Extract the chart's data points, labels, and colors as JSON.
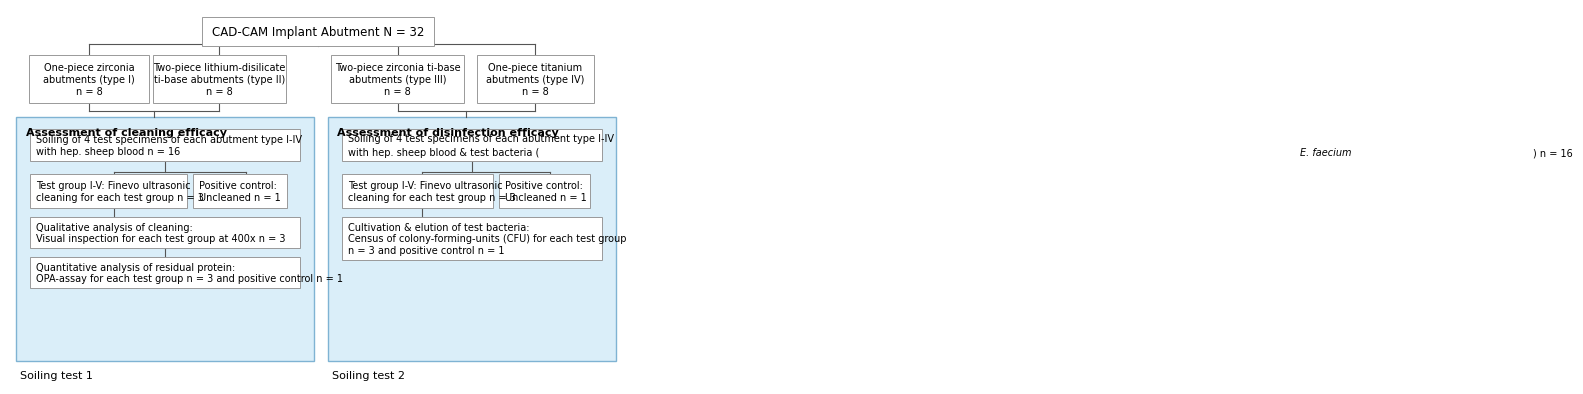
{
  "bg_color": "#ffffff",
  "box_edge_color": "#999999",
  "panel_bg_color": "#daeef9",
  "panel_edge_color": "#7fb3d3",
  "line_color": "#555555",
  "font_size": 7.0,
  "title_font_size": 8.5,
  "panel_label_font_size": 8.0,
  "small_label_font_size": 8.0,
  "title_box": {
    "text": "CAD-CAM Implant Abutment N = 32"
  },
  "type_boxes": [
    "One-piece zirconia\nabutments (type I)\nn = 8",
    "Two-piece lithium-disilicate\nti-base abutments (type II)\nn = 8",
    "Two-piece zirconia ti-base\nabutments (type III)\nn = 8",
    "One-piece titanium\nabutments (type IV)\nn = 8"
  ],
  "left_panel_label": "Assessment of cleaning efficacy",
  "right_panel_label": "Assessment of disinfection efficacy",
  "left_soiling": "Soiling of 4 test specimens of each abutment type I-IV\nwith hep. sheep blood n = 16",
  "left_test": "Test group I-V: Finevo ultrasonic\ncleaning for each test group n = 3",
  "left_ctrl": "Positive control:\nUncleaned n = 1",
  "left_qual": "Qualitative analysis of cleaning:\nVisual inspection for each test group at 400x n = 3",
  "left_quant": "Quantitative analysis of residual protein:\nOPA-assay for each test group n = 3 and positive control n = 1",
  "right_soiling": "Soiling of 4 test specimens of each abutment type I-IV\nwith hep. sheep blood & test bacteria (E. faecium) n = 16",
  "right_test": "Test group I-V: Finevo ultrasonic\ncleaning for each test group n = 3",
  "right_ctrl": "Positive control:\nUncleaned n = 1",
  "right_cult": "Cultivation & elution of test bacteria:\nCensus of colony-forming-units (CFU) for each test group\nn = 3 and positive control n = 1",
  "soiling_test_1": "Soiling test 1",
  "soiling_test_2": "Soiling test 2"
}
